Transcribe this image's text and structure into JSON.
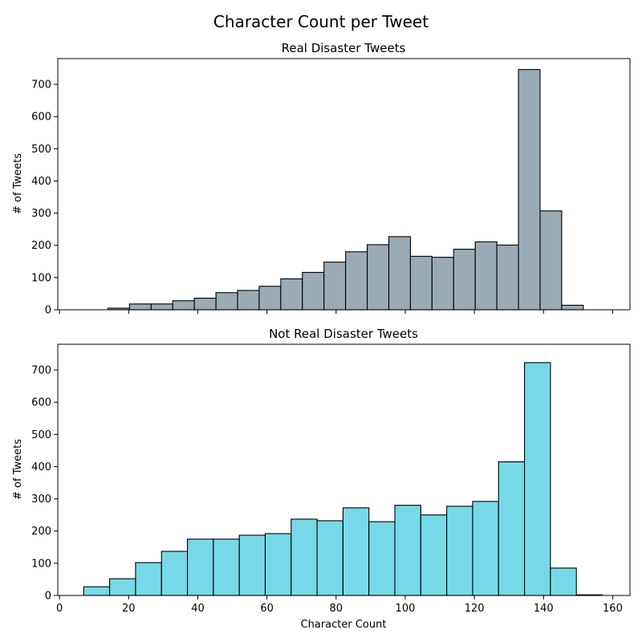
{
  "figure": {
    "suptitle": "Character Count per Tweet"
  },
  "chart_data": [
    {
      "type": "bar",
      "title": "Real Disaster Tweets",
      "xlabel": "",
      "ylabel": "# of Tweets",
      "color": "#9aabb5",
      "edge_color": "#000000",
      "xlim": [
        -0.5,
        165
      ],
      "ylim": [
        0,
        780
      ],
      "xticks": [
        0,
        20,
        40,
        60,
        80,
        100,
        120,
        140,
        160
      ],
      "show_xtick_labels": false,
      "yticks": [
        0,
        100,
        200,
        300,
        400,
        500,
        600,
        700
      ],
      "bin_edges": [
        14,
        20.25,
        26.5,
        32.75,
        39,
        45.25,
        51.5,
        57.75,
        64,
        70.25,
        76.5,
        82.75,
        89,
        95.25,
        101.5,
        107.75,
        114,
        120.25,
        126.5,
        132.75,
        139,
        145.25,
        151.5
      ],
      "values": [
        5,
        18,
        18,
        28,
        36,
        53,
        60,
        73,
        96,
        116,
        148,
        180,
        202,
        227,
        166,
        163,
        188,
        211,
        201,
        746,
        307,
        14
      ]
    },
    {
      "type": "bar",
      "title": "Not Real Disaster Tweets",
      "xlabel": "Character Count",
      "ylabel": "# of Tweets",
      "color": "#77d9e7",
      "edge_color": "#000000",
      "xlim": [
        -0.5,
        165
      ],
      "ylim": [
        0,
        780
      ],
      "xticks": [
        0,
        20,
        40,
        60,
        80,
        100,
        120,
        140,
        160
      ],
      "show_xtick_labels": true,
      "yticks": [
        0,
        100,
        200,
        300,
        400,
        500,
        600,
        700
      ],
      "bin_edges": [
        7,
        14.5,
        22,
        29.5,
        37,
        44.5,
        52,
        59.5,
        67,
        74.5,
        82,
        89.5,
        97,
        104.5,
        112,
        119.5,
        127,
        134.5,
        142,
        149.5,
        157
      ],
      "values": [
        27,
        52,
        102,
        137,
        175,
        175,
        187,
        192,
        237,
        232,
        272,
        229,
        280,
        250,
        277,
        292,
        415,
        723,
        85,
        2
      ]
    }
  ]
}
